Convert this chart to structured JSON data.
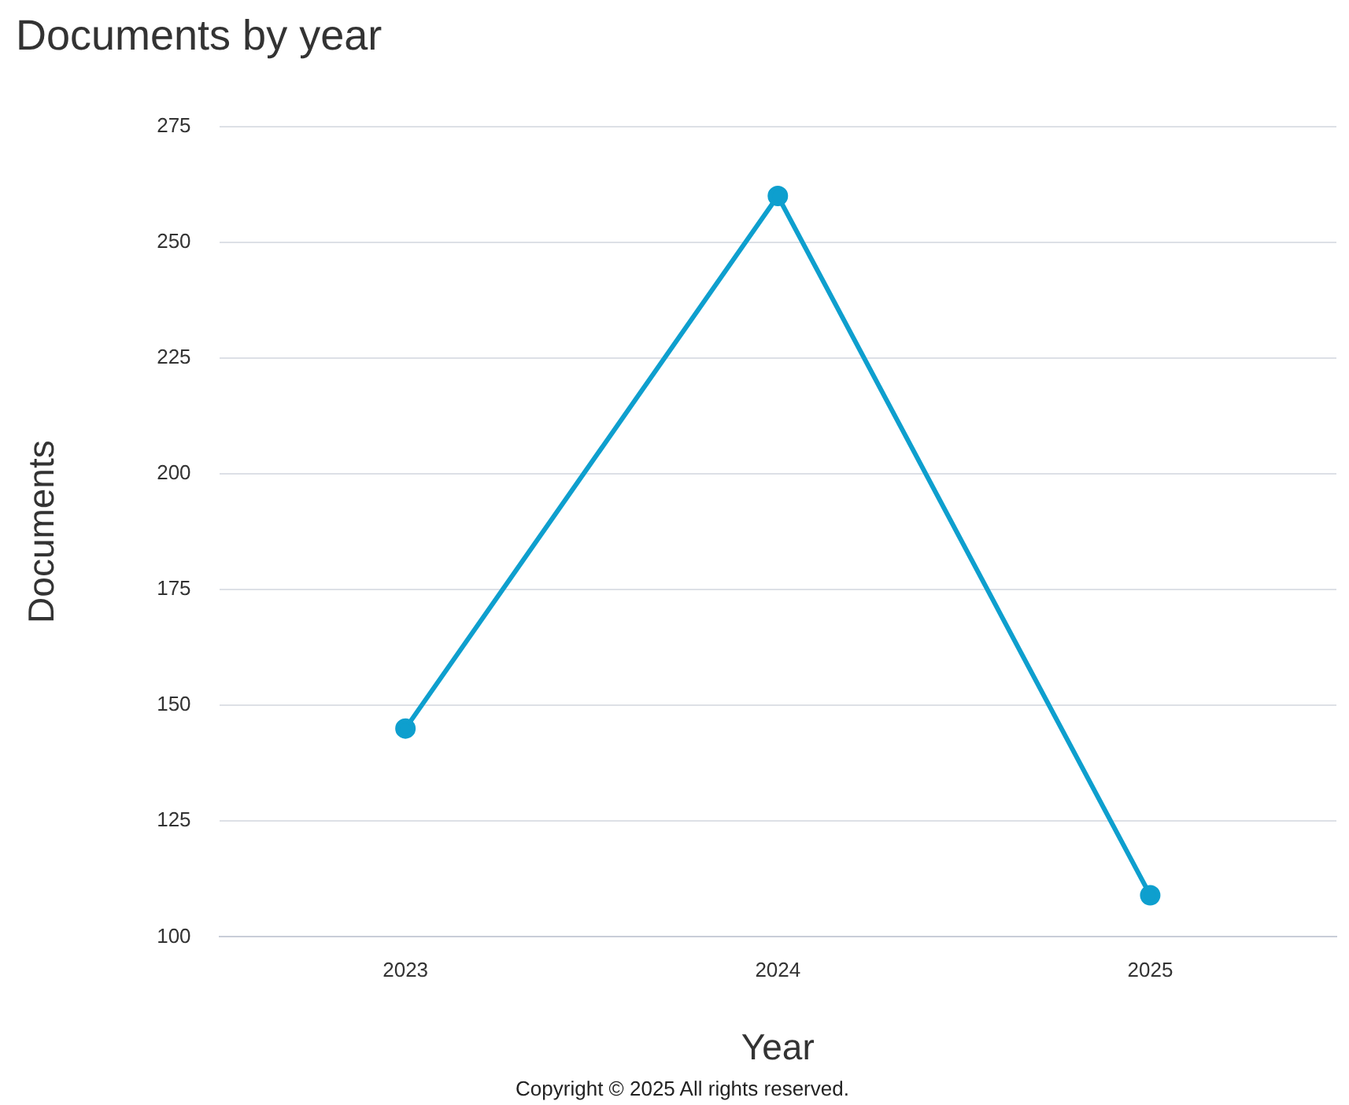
{
  "chart_data": {
    "type": "line",
    "title": "Documents by year",
    "xlabel": "Year",
    "ylabel": "Documents",
    "categories": [
      "2023",
      "2024",
      "2025"
    ],
    "series": [
      {
        "color": "#0e9fce",
        "values": [
          145,
          260,
          109
        ]
      }
    ],
    "ylim": [
      100,
      275
    ],
    "yticks": [
      100,
      125,
      150,
      175,
      200,
      225,
      250,
      275
    ],
    "grid": "y",
    "legend": false,
    "marker": "circle",
    "line_style": "solid",
    "annotations": [
      "Copyright © 2025 All rights reserved."
    ]
  }
}
